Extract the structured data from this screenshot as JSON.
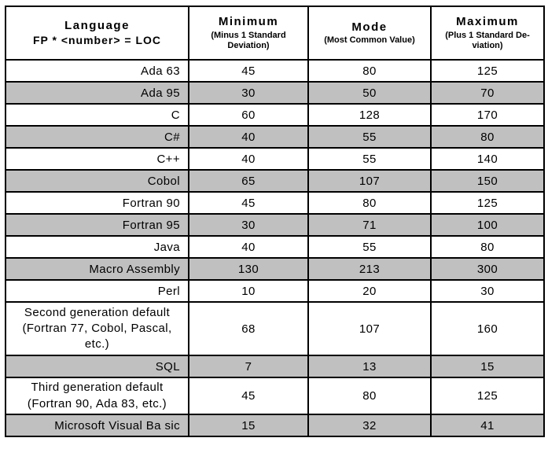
{
  "colors": {
    "row_shade": "#c0c0c0",
    "border": "#000000",
    "background": "#ffffff"
  },
  "table": {
    "header": {
      "language": {
        "title": "Language",
        "subtitle": "FP * <number> = LOC"
      },
      "minimum": {
        "title": "Minimum",
        "subtitle": "(Minus 1 Standard\nDeviation)"
      },
      "mode": {
        "title": "Mode",
        "subtitle": "(Most Common Value)"
      },
      "maximum": {
        "title": "Maximum",
        "subtitle": "(Plus 1 Standard De-\nviation)"
      }
    },
    "rows": [
      {
        "language": "Ada 63",
        "min": "45",
        "mode": "80",
        "max": "125"
      },
      {
        "language": "Ada 95",
        "min": "30",
        "mode": "50",
        "max": "70"
      },
      {
        "language": "C",
        "min": "60",
        "mode": "128",
        "max": "170"
      },
      {
        "language": "C#",
        "min": "40",
        "mode": "55",
        "max": "80"
      },
      {
        "language": "C++",
        "min": "40",
        "mode": "55",
        "max": "140"
      },
      {
        "language": "Cobol",
        "min": "65",
        "mode": "107",
        "max": "150"
      },
      {
        "language": "Fortran 90",
        "min": "45",
        "mode": "80",
        "max": "125"
      },
      {
        "language": "Fortran 95",
        "min": "30",
        "mode": "71",
        "max": "100"
      },
      {
        "language": "Java",
        "min": "40",
        "mode": "55",
        "max": "80"
      },
      {
        "language": "Macro Assembly",
        "min": "130",
        "mode": "213",
        "max": "300"
      },
      {
        "language": "Perl",
        "min": "10",
        "mode": "20",
        "max": "30"
      },
      {
        "language": "Second generation default\n(Fortran 77, Cobol, Pascal,\netc.)",
        "min": "68",
        "mode": "107",
        "max": "160"
      },
      {
        "language": "SQL",
        "min": "7",
        "mode": "13",
        "max": "15"
      },
      {
        "language": "Third generation default\n(Fortran 90, Ada 83, etc.)",
        "min": "45",
        "mode": "80",
        "max": "125"
      },
      {
        "language": "Microsoft Visual Ba sic",
        "min": "15",
        "mode": "32",
        "max": "41"
      }
    ]
  }
}
